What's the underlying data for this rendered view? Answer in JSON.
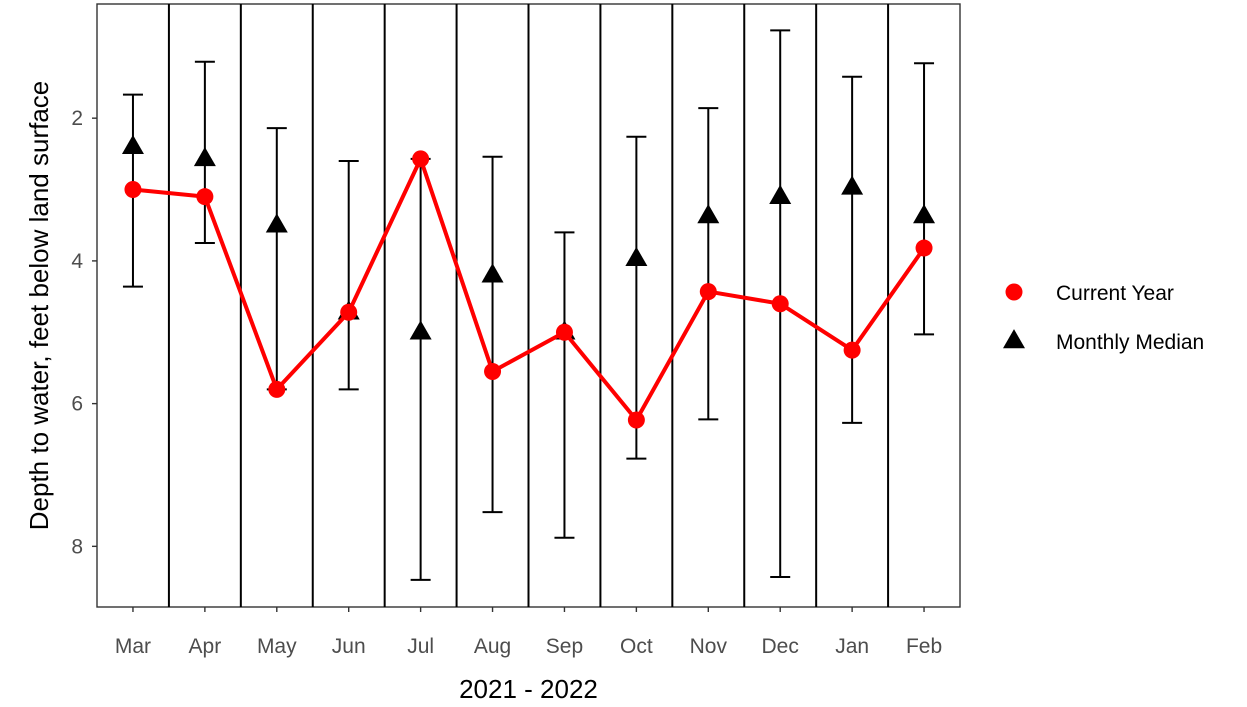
{
  "chart_data": {
    "type": "line",
    "title": "",
    "xlabel": "2021 - 2022",
    "ylabel": "Depth to water, feet below land surface",
    "categories": [
      "Mar",
      "Apr",
      "May",
      "Jun",
      "Jul",
      "Aug",
      "Sep",
      "Oct",
      "Nov",
      "Dec",
      "Jan",
      "Feb"
    ],
    "y_reversed": true,
    "ylim": [
      0.4,
      8.85
    ],
    "y_ticks": [
      2,
      4,
      6,
      8
    ],
    "grid": false,
    "legend_position": "right",
    "series": [
      {
        "name": "Current Year",
        "kind": "line+circle",
        "color": "#ff0000",
        "values": [
          3.0,
          3.1,
          5.8,
          4.72,
          2.57,
          5.55,
          5.0,
          6.23,
          4.43,
          4.6,
          5.25,
          3.82
        ]
      },
      {
        "name": "Monthly Median",
        "kind": "triangle",
        "color": "#000000",
        "values": [
          2.4,
          2.57,
          3.5,
          4.72,
          5.0,
          4.2,
          5.0,
          3.97,
          3.37,
          3.1,
          2.97,
          3.37
        ],
        "error_low": [
          1.67,
          1.21,
          2.14,
          2.6,
          2.57,
          2.54,
          3.6,
          2.26,
          1.86,
          0.77,
          1.42,
          1.23
        ],
        "error_high": [
          4.36,
          3.75,
          5.8,
          5.8,
          8.47,
          7.52,
          7.88,
          6.77,
          6.22,
          8.43,
          6.27,
          5.03
        ]
      }
    ]
  }
}
